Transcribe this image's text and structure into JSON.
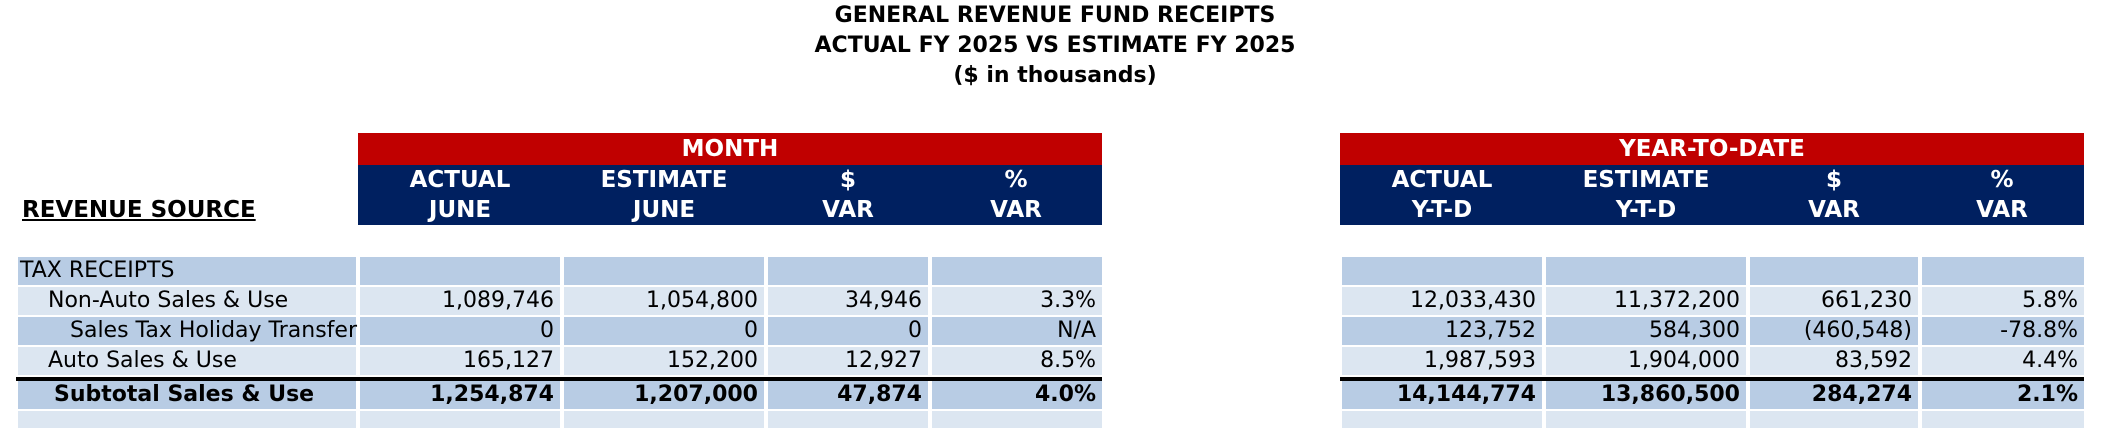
{
  "titles": {
    "line1": "GENERAL REVENUE FUND RECEIPTS",
    "line2": "ACTUAL FY 2025 VS  ESTIMATE FY 2025",
    "line3": "($ in thousands)"
  },
  "revenue_source_label": "REVENUE SOURCE",
  "month": {
    "band": "MONTH",
    "headers": [
      {
        "l1": "ACTUAL",
        "l2": "JUNE"
      },
      {
        "l1": "ESTIMATE",
        "l2": "JUNE"
      },
      {
        "l1": "$",
        "l2": "VAR"
      },
      {
        "l1": "%",
        "l2": "VAR"
      }
    ]
  },
  "ytd": {
    "band": "YEAR-TO-DATE",
    "headers": [
      {
        "l1": "ACTUAL",
        "l2": "Y-T-D"
      },
      {
        "l1": "ESTIMATE",
        "l2": "Y-T-D"
      },
      {
        "l1": "$",
        "l2": "VAR"
      },
      {
        "l1": "%",
        "l2": "VAR"
      }
    ]
  },
  "rows": [
    {
      "label": "TAX RECEIPTS",
      "month": [
        "",
        "",
        "",
        ""
      ],
      "ytd": [
        "",
        "",
        "",
        ""
      ]
    },
    {
      "label": "Non-Auto Sales & Use",
      "month": [
        "1,089,746",
        "1,054,800",
        "34,946",
        "3.3%"
      ],
      "ytd": [
        "12,033,430",
        "11,372,200",
        "661,230",
        "5.8%"
      ]
    },
    {
      "label": "Sales Tax Holiday Transfer",
      "month": [
        "0",
        "0",
        "0",
        "N/A"
      ],
      "ytd": [
        "123,752",
        "584,300",
        "(460,548)",
        "-78.8%"
      ]
    },
    {
      "label": "Auto Sales & Use",
      "month": [
        "165,127",
        "152,200",
        "12,927",
        "8.5%"
      ],
      "ytd": [
        "1,987,593",
        "1,904,000",
        "83,592",
        "4.4%"
      ]
    },
    {
      "label": "Subtotal Sales & Use",
      "month": [
        "1,254,874",
        "1,207,000",
        "47,874",
        "4.0%"
      ],
      "ytd": [
        "14,144,774",
        "13,860,500",
        "284,274",
        "2.1%"
      ]
    }
  ]
}
